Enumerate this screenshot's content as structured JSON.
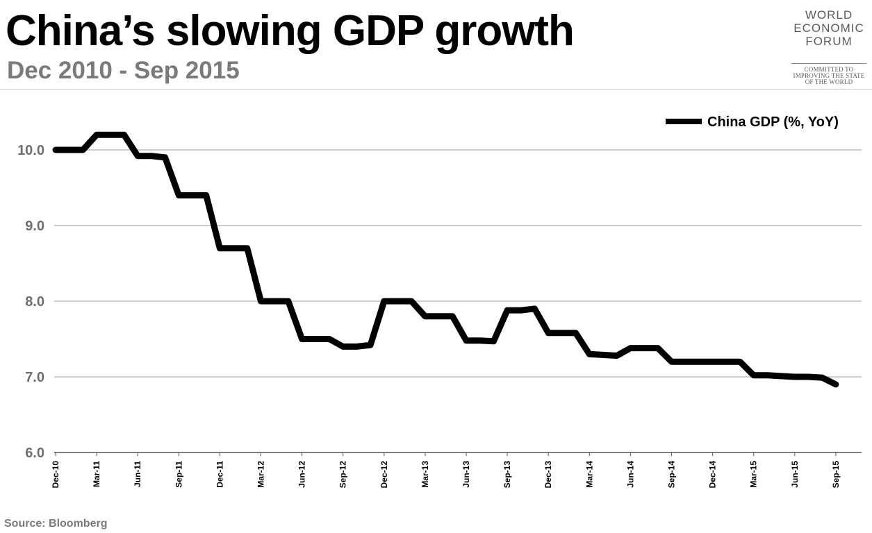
{
  "header": {
    "title": "China’s slowing GDP growth",
    "subtitle": "Dec 2010 - Sep 2015"
  },
  "logo": {
    "lines": [
      "WORLD",
      "ECONOMIC",
      "FORUM"
    ],
    "tagline": [
      "COMMITTED TO",
      "IMPROVING THE STATE",
      "OF THE WORLD"
    ]
  },
  "footer": {
    "source": "Source: Bloomberg"
  },
  "chart_data": {
    "type": "line",
    "title": "China’s slowing GDP growth",
    "subtitle": "Dec 2010 - Sep 2015",
    "legend_position": "top-right",
    "grid": true,
    "ylim": [
      6.0,
      10.5
    ],
    "yticks": [
      "10.0",
      "9.0",
      "8.0",
      "7.0",
      "6.0"
    ],
    "ytick_values": [
      10.0,
      9.0,
      8.0,
      7.0,
      6.0
    ],
    "xticks": [
      "Dec-10",
      "Mar-11",
      "Jun-11",
      "Sep-11",
      "Dec-11",
      "Mar-12",
      "Jun-12",
      "Sep-12",
      "Dec-12",
      "Mar-13",
      "Jun-13",
      "Sep-13",
      "Dec-13",
      "Mar-14",
      "Jun-14",
      "Sep-14",
      "Dec-14",
      "Mar-15",
      "Jun-15",
      "Sep-15"
    ],
    "x_months": [
      "2010-12",
      "2011-01",
      "2011-02",
      "2011-03",
      "2011-04",
      "2011-05",
      "2011-06",
      "2011-07",
      "2011-08",
      "2011-09",
      "2011-10",
      "2011-11",
      "2011-12",
      "2012-01",
      "2012-02",
      "2012-03",
      "2012-04",
      "2012-05",
      "2012-06",
      "2012-07",
      "2012-08",
      "2012-09",
      "2012-10",
      "2012-11",
      "2012-12",
      "2013-01",
      "2013-02",
      "2013-03",
      "2013-04",
      "2013-05",
      "2013-06",
      "2013-07",
      "2013-08",
      "2013-09",
      "2013-10",
      "2013-11",
      "2013-12",
      "2014-01",
      "2014-02",
      "2014-03",
      "2014-04",
      "2014-05",
      "2014-06",
      "2014-07",
      "2014-08",
      "2014-09",
      "2014-10",
      "2014-11",
      "2014-12",
      "2015-01",
      "2015-02",
      "2015-03",
      "2015-04",
      "2015-05",
      "2015-06",
      "2015-07",
      "2015-08",
      "2015-09"
    ],
    "series": [
      {
        "name": "China GDP (%, YoY)",
        "color": "#000000",
        "values": [
          10.0,
          10.0,
          10.0,
          10.2,
          10.2,
          10.2,
          9.92,
          9.92,
          9.9,
          9.4,
          9.4,
          9.4,
          8.7,
          8.7,
          8.7,
          8.0,
          8.0,
          8.0,
          7.5,
          7.5,
          7.5,
          7.4,
          7.4,
          7.42,
          8.0,
          8.0,
          8.0,
          7.8,
          7.8,
          7.8,
          7.48,
          7.48,
          7.47,
          7.88,
          7.88,
          7.9,
          7.58,
          7.58,
          7.58,
          7.3,
          7.29,
          7.28,
          7.38,
          7.38,
          7.38,
          7.2,
          7.2,
          7.2,
          7.2,
          7.2,
          7.2,
          7.02,
          7.02,
          7.01,
          7.0,
          7.0,
          6.99,
          6.9
        ]
      }
    ]
  }
}
